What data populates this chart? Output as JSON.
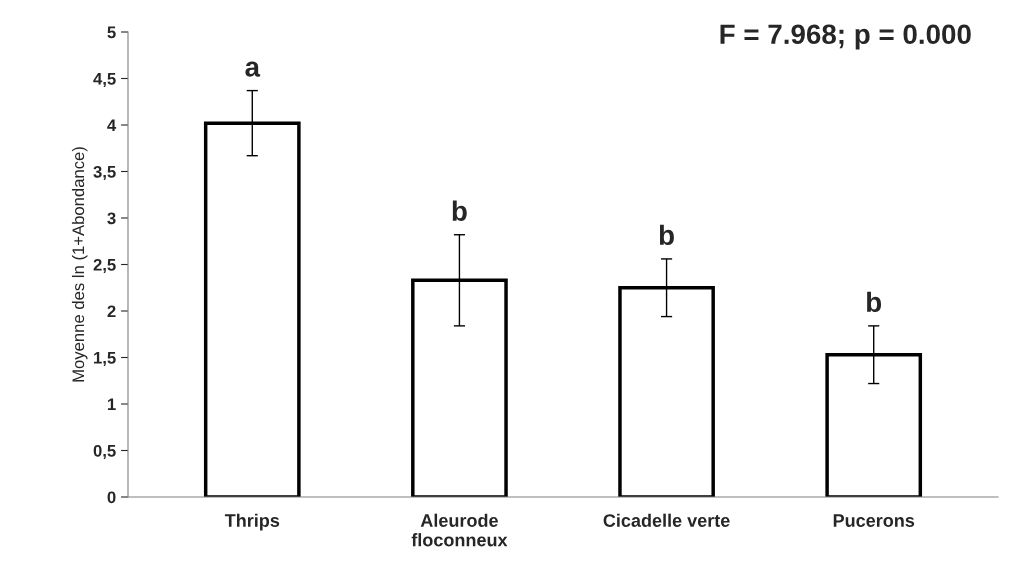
{
  "chart_data": {
    "type": "bar",
    "ylabel": "Moyenne des ln (1+Abondance)",
    "categories": [
      "Thrips",
      "Aleurode\nfloconneux",
      "Cicadelle verte",
      "Pucerons"
    ],
    "values": [
      4.02,
      2.33,
      2.25,
      1.53
    ],
    "errors": [
      0.35,
      0.49,
      0.31,
      0.31
    ],
    "color": "#ffffff",
    "ylim": [
      0,
      5
    ],
    "yticks": [
      0,
      {
        "value": 0.5,
        "label": "0,5"
      },
      1,
      {
        "value": 1.5,
        "label": "1,5"
      },
      2,
      {
        "value": 2.5,
        "label": "2,5"
      },
      3,
      {
        "value": 3.5,
        "label": "3,5"
      },
      4,
      {
        "value": 4.5,
        "label": "4,5"
      },
      5
    ],
    "grid": false,
    "legend": false,
    "annotations": [
      "a",
      "b",
      "b",
      "b",
      "F = 7.968; p = 0.000"
    ]
  }
}
